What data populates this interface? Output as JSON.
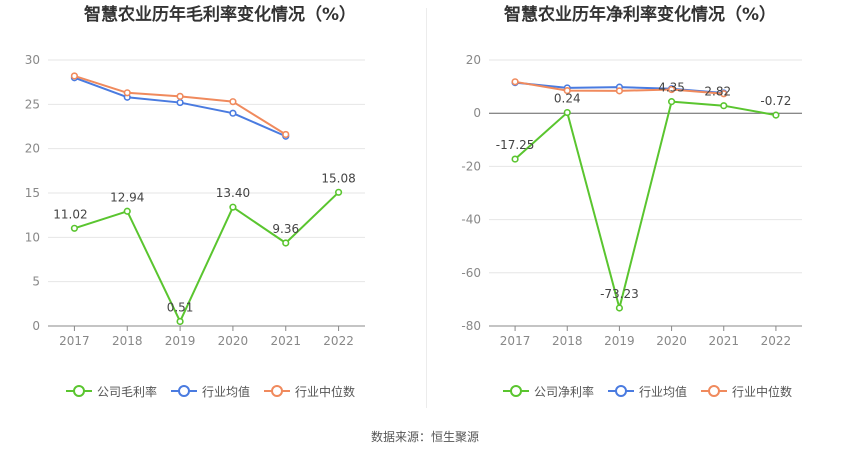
{
  "chart_data": [
    {
      "type": "line",
      "title": "智慧农业历年毛利率变化情况（%）",
      "categories": [
        "2017",
        "2018",
        "2019",
        "2020",
        "2021",
        "2022"
      ],
      "ylim": [
        0,
        30
      ],
      "yticks": [
        0,
        5,
        10,
        15,
        20,
        25,
        30
      ],
      "grid": true,
      "legend_position": "bottom",
      "series": [
        {
          "name": "公司毛利率",
          "color": "#5ac52f",
          "values": [
            11.02,
            12.94,
            0.51,
            13.4,
            9.36,
            15.08
          ],
          "labels": [
            "11.02",
            "12.94",
            "0.51",
            "13.40",
            "9.36",
            "15.08"
          ]
        },
        {
          "name": "行业均值",
          "color": "#4a7be0",
          "values": [
            28.0,
            25.8,
            25.2,
            24.0,
            21.4,
            null
          ]
        },
        {
          "name": "行业中位数",
          "color": "#f08a5d",
          "values": [
            28.2,
            26.3,
            25.9,
            25.3,
            21.6,
            null
          ]
        }
      ]
    },
    {
      "type": "line",
      "title": "智慧农业历年净利率变化情况（%）",
      "categories": [
        "2017",
        "2018",
        "2019",
        "2020",
        "2021",
        "2022"
      ],
      "ylim": [
        -80,
        20
      ],
      "yticks": [
        -80,
        -60,
        -40,
        -20,
        0,
        20
      ],
      "grid": true,
      "legend_position": "bottom",
      "series": [
        {
          "name": "公司净利率",
          "color": "#5ac52f",
          "values": [
            -17.25,
            0.24,
            -73.23,
            4.35,
            2.82,
            -0.72
          ],
          "labels": [
            "-17.25",
            "0.24",
            "-73.23",
            "4.35",
            "2.82",
            "-0.72"
          ]
        },
        {
          "name": "行业均值",
          "color": "#4a7be0",
          "values": [
            11.5,
            9.5,
            9.8,
            9.2,
            7.6,
            null
          ]
        },
        {
          "name": "行业中位数",
          "color": "#f08a5d",
          "values": [
            11.8,
            8.5,
            8.4,
            8.9,
            7.3,
            null
          ]
        }
      ]
    }
  ],
  "footer": {
    "source": "数据来源：恒生聚源"
  }
}
